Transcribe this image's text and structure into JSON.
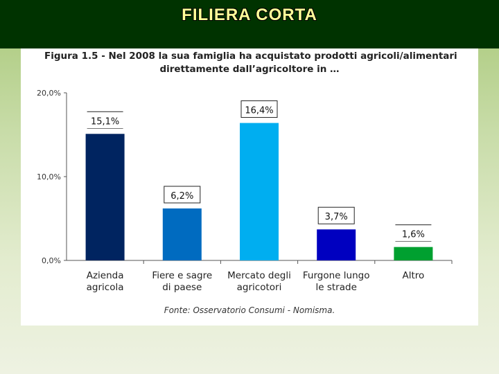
{
  "slide": {
    "title": "FILIERA CORTA"
  },
  "chart_data": {
    "type": "bar",
    "title_line1": "Figura 1.5 - Nel 2008 la sua famiglia ha acquistato prodotti agricoli/alimentari",
    "title_line2": "direttamente dall’agricoltore in …",
    "categories": [
      [
        "Azienda",
        "agricola"
      ],
      [
        "Fiere e sagre",
        "di paese"
      ],
      [
        "Mercato degli",
        "agricotori"
      ],
      [
        "Furgone lungo",
        "le strade"
      ],
      [
        "Altro"
      ]
    ],
    "values": [
      15.1,
      6.2,
      16.4,
      3.7,
      1.6
    ],
    "value_labels": [
      "15,1%",
      "6,2%",
      "16,4%",
      "3,7%",
      "1,6%"
    ],
    "colors": [
      "#002460",
      "#006bc0",
      "#00aef0",
      "#0000c0",
      "#00a030"
    ],
    "ylim": [
      0,
      20
    ],
    "yticks": [
      0,
      10,
      20
    ],
    "ytick_labels": [
      "0,0%",
      "10,0%",
      "20,0%"
    ],
    "xlabel": "",
    "ylabel": "",
    "source": "Fonte: Osservatorio Consumi - Nomisma."
  }
}
